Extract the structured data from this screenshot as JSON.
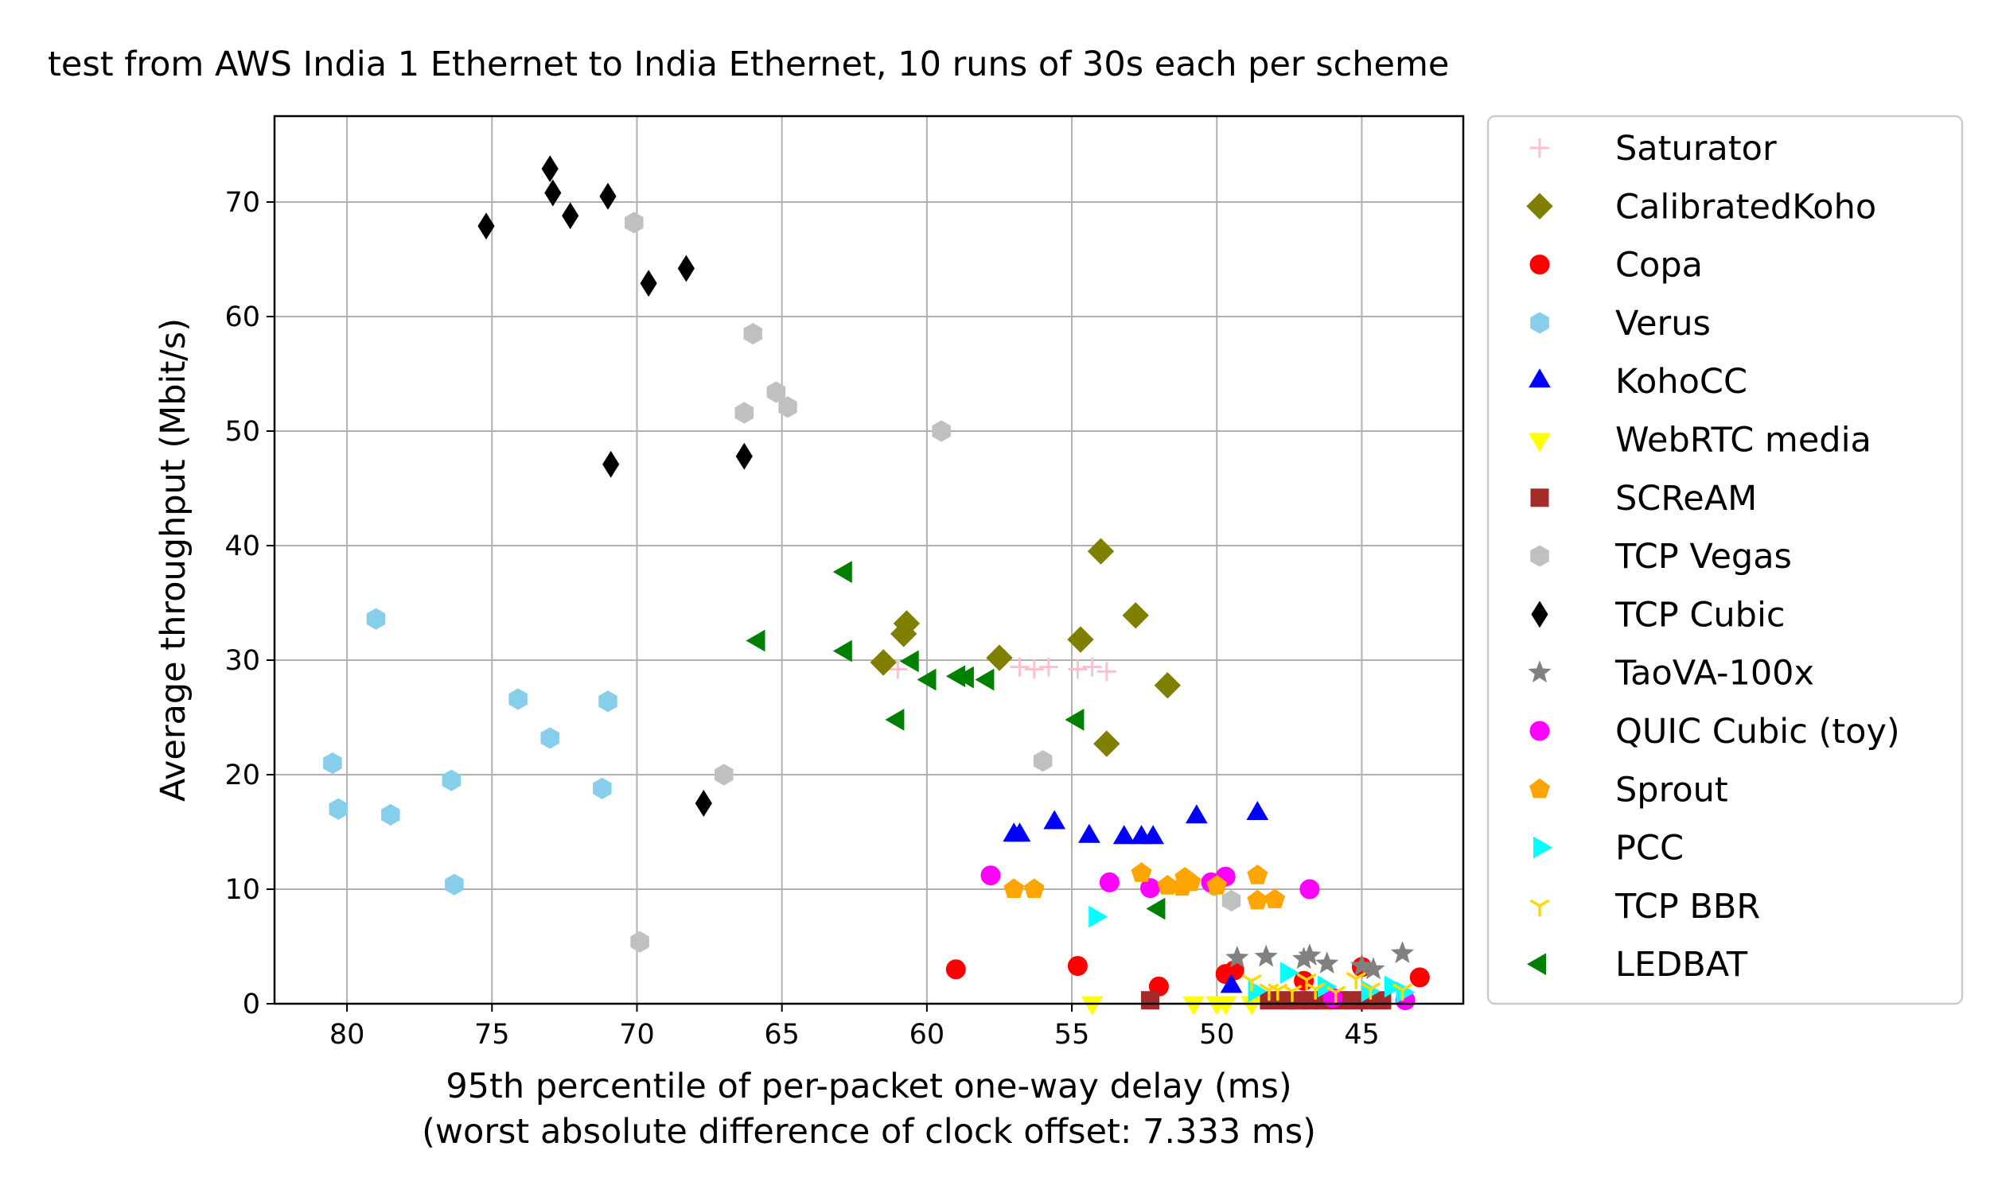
{
  "chart_data": {
    "type": "scatter",
    "title": "test from AWS India 1 Ethernet to India Ethernet, 10 runs of 30s each per scheme",
    "xlabel": "95th percentile of per-packet one-way delay (ms)",
    "xlabel2": "(worst absolute difference of clock offset: 7.333 ms)",
    "ylabel": "Average throughput (Mbit/s)",
    "xlim": [
      82.5,
      41.5
    ],
    "ylim": [
      0,
      77.5
    ],
    "x_inverted": true,
    "grid": true,
    "legend_position": "outside-right",
    "xticks": [
      80,
      75,
      70,
      65,
      60,
      55,
      50,
      45
    ],
    "yticks": [
      0,
      10,
      20,
      30,
      40,
      50,
      60,
      70
    ],
    "series": [
      {
        "name": "Saturator",
        "marker": "plus",
        "color": "#ffc0cb",
        "points": [
          [
            61.0,
            29.2
          ],
          [
            56.8,
            29.4
          ],
          [
            56.3,
            29.2
          ],
          [
            55.8,
            29.4
          ],
          [
            54.8,
            29.2
          ],
          [
            54.3,
            29.4
          ],
          [
            53.8,
            29.0
          ]
        ]
      },
      {
        "name": "CalibratedKoho",
        "marker": "diamond",
        "color": "#808000",
        "points": [
          [
            61.5,
            29.8
          ],
          [
            60.8,
            32.3
          ],
          [
            60.7,
            33.2
          ],
          [
            57.5,
            30.2
          ],
          [
            54.7,
            31.8
          ],
          [
            54.0,
            39.5
          ],
          [
            53.8,
            22.7
          ],
          [
            52.8,
            33.9
          ],
          [
            51.7,
            27.8
          ]
        ]
      },
      {
        "name": "Copa",
        "marker": "circle",
        "color": "#ff0000",
        "points": [
          [
            59.0,
            3.0
          ],
          [
            54.8,
            3.3
          ],
          [
            52.0,
            1.5
          ],
          [
            49.7,
            2.6
          ],
          [
            49.4,
            2.9
          ],
          [
            47.0,
            2.0
          ],
          [
            45.0,
            3.2
          ],
          [
            43.0,
            2.3
          ]
        ]
      },
      {
        "name": "Verus",
        "marker": "hexagon",
        "color": "#87ceeb",
        "points": [
          [
            80.5,
            21.0
          ],
          [
            80.3,
            17.0
          ],
          [
            79.0,
            33.6
          ],
          [
            78.5,
            16.5
          ],
          [
            76.4,
            19.5
          ],
          [
            76.3,
            10.4
          ],
          [
            74.1,
            26.6
          ],
          [
            73.0,
            23.2
          ],
          [
            71.2,
            18.8
          ],
          [
            71.0,
            26.4
          ]
        ]
      },
      {
        "name": "KohoCC",
        "marker": "triangle-up",
        "color": "#0000ff",
        "points": [
          [
            57.0,
            14.7
          ],
          [
            56.8,
            14.7
          ],
          [
            55.6,
            15.8
          ],
          [
            54.4,
            14.6
          ],
          [
            53.2,
            14.5
          ],
          [
            52.6,
            14.5
          ],
          [
            52.2,
            14.5
          ],
          [
            50.7,
            16.3
          ],
          [
            49.5,
            1.5
          ],
          [
            48.6,
            16.6
          ]
        ]
      },
      {
        "name": "WebRTC media",
        "marker": "triangle-down",
        "color": "#ffff00",
        "points": [
          [
            54.3,
            0.1
          ],
          [
            50.8,
            0.1
          ],
          [
            50.0,
            0.1
          ],
          [
            49.7,
            0.1
          ],
          [
            48.8,
            0.1
          ]
        ]
      },
      {
        "name": "SCReAM",
        "marker": "square",
        "color": "#a52a2a",
        "points": [
          [
            52.3,
            0.3
          ],
          [
            48.2,
            0.3
          ],
          [
            47.6,
            0.3
          ],
          [
            47.2,
            0.3
          ],
          [
            46.8,
            0.3
          ],
          [
            46.3,
            0.3
          ],
          [
            45.8,
            0.3
          ],
          [
            45.3,
            0.3
          ],
          [
            44.8,
            0.3
          ],
          [
            44.3,
            0.3
          ]
        ]
      },
      {
        "name": "TCP Vegas",
        "marker": "hexagon",
        "color": "#c0c0c0",
        "points": [
          [
            70.1,
            68.2
          ],
          [
            69.9,
            5.4
          ],
          [
            67.0,
            20.0
          ],
          [
            66.3,
            51.6
          ],
          [
            66.0,
            58.5
          ],
          [
            65.2,
            53.4
          ],
          [
            64.8,
            52.1
          ],
          [
            59.5,
            50.0
          ],
          [
            56.0,
            21.2
          ],
          [
            50.1,
            10.3
          ],
          [
            49.5,
            9.0
          ]
        ]
      },
      {
        "name": "TCP Cubic",
        "marker": "thin-diamond",
        "color": "#000000",
        "points": [
          [
            75.2,
            67.9
          ],
          [
            73.0,
            72.9
          ],
          [
            72.9,
            70.8
          ],
          [
            72.3,
            68.8
          ],
          [
            71.0,
            70.5
          ],
          [
            70.9,
            47.1
          ],
          [
            69.6,
            62.9
          ],
          [
            68.3,
            64.2
          ],
          [
            67.7,
            17.5
          ],
          [
            66.3,
            47.8
          ]
        ]
      },
      {
        "name": "TaoVA-100x",
        "marker": "star",
        "color": "#808080",
        "points": [
          [
            49.3,
            4.0
          ],
          [
            48.3,
            4.1
          ],
          [
            47.0,
            3.9
          ],
          [
            46.8,
            4.2
          ],
          [
            46.2,
            3.5
          ],
          [
            45.0,
            3.3
          ],
          [
            44.6,
            3.0
          ],
          [
            43.6,
            4.4
          ]
        ]
      },
      {
        "name": "QUIC Cubic (toy)",
        "marker": "circle",
        "color": "#ff00ff",
        "points": [
          [
            57.8,
            11.2
          ],
          [
            53.7,
            10.6
          ],
          [
            52.3,
            10.1
          ],
          [
            50.2,
            10.6
          ],
          [
            49.7,
            11.1
          ],
          [
            46.8,
            10.0
          ],
          [
            46.0,
            0.5
          ],
          [
            43.5,
            0.3
          ]
        ]
      },
      {
        "name": "Sprout",
        "marker": "pentagon",
        "color": "#ffa500",
        "points": [
          [
            57.0,
            10.0
          ],
          [
            56.3,
            10.0
          ],
          [
            52.6,
            11.4
          ],
          [
            51.7,
            10.3
          ],
          [
            51.2,
            10.2
          ],
          [
            51.1,
            11.0
          ],
          [
            50.9,
            10.6
          ],
          [
            50.0,
            10.3
          ],
          [
            48.6,
            11.2
          ],
          [
            48.6,
            9.0
          ],
          [
            48.0,
            9.1
          ]
        ]
      },
      {
        "name": "PCC",
        "marker": "triangle-right",
        "color": "#00ffff",
        "points": [
          [
            54.2,
            7.6
          ],
          [
            48.7,
            1.1
          ],
          [
            47.6,
            2.7
          ],
          [
            46.3,
            1.5
          ],
          [
            44.8,
            1.1
          ],
          [
            44.0,
            1.5
          ],
          [
            43.6,
            1.0
          ]
        ]
      },
      {
        "name": "TCP BBR",
        "marker": "tri-down",
        "color": "#ffd700",
        "points": [
          [
            48.8,
            2.0
          ],
          [
            48.2,
            1.2
          ],
          [
            47.9,
            1.2
          ],
          [
            47.4,
            1.1
          ],
          [
            46.9,
            2.1
          ],
          [
            46.6,
            1.3
          ],
          [
            45.9,
            1.0
          ],
          [
            45.2,
            2.2
          ],
          [
            44.7,
            1.3
          ],
          [
            43.6,
            1.2
          ]
        ]
      },
      {
        "name": "LEDBAT",
        "marker": "triangle-left",
        "color": "#008000",
        "points": [
          [
            65.8,
            31.7
          ],
          [
            62.8,
            37.7
          ],
          [
            62.8,
            30.8
          ],
          [
            61.0,
            24.8
          ],
          [
            60.5,
            29.9
          ],
          [
            59.9,
            28.3
          ],
          [
            58.9,
            28.6
          ],
          [
            58.6,
            28.5
          ],
          [
            57.9,
            28.3
          ],
          [
            54.8,
            24.8
          ],
          [
            52.0,
            8.3
          ]
        ]
      }
    ]
  }
}
